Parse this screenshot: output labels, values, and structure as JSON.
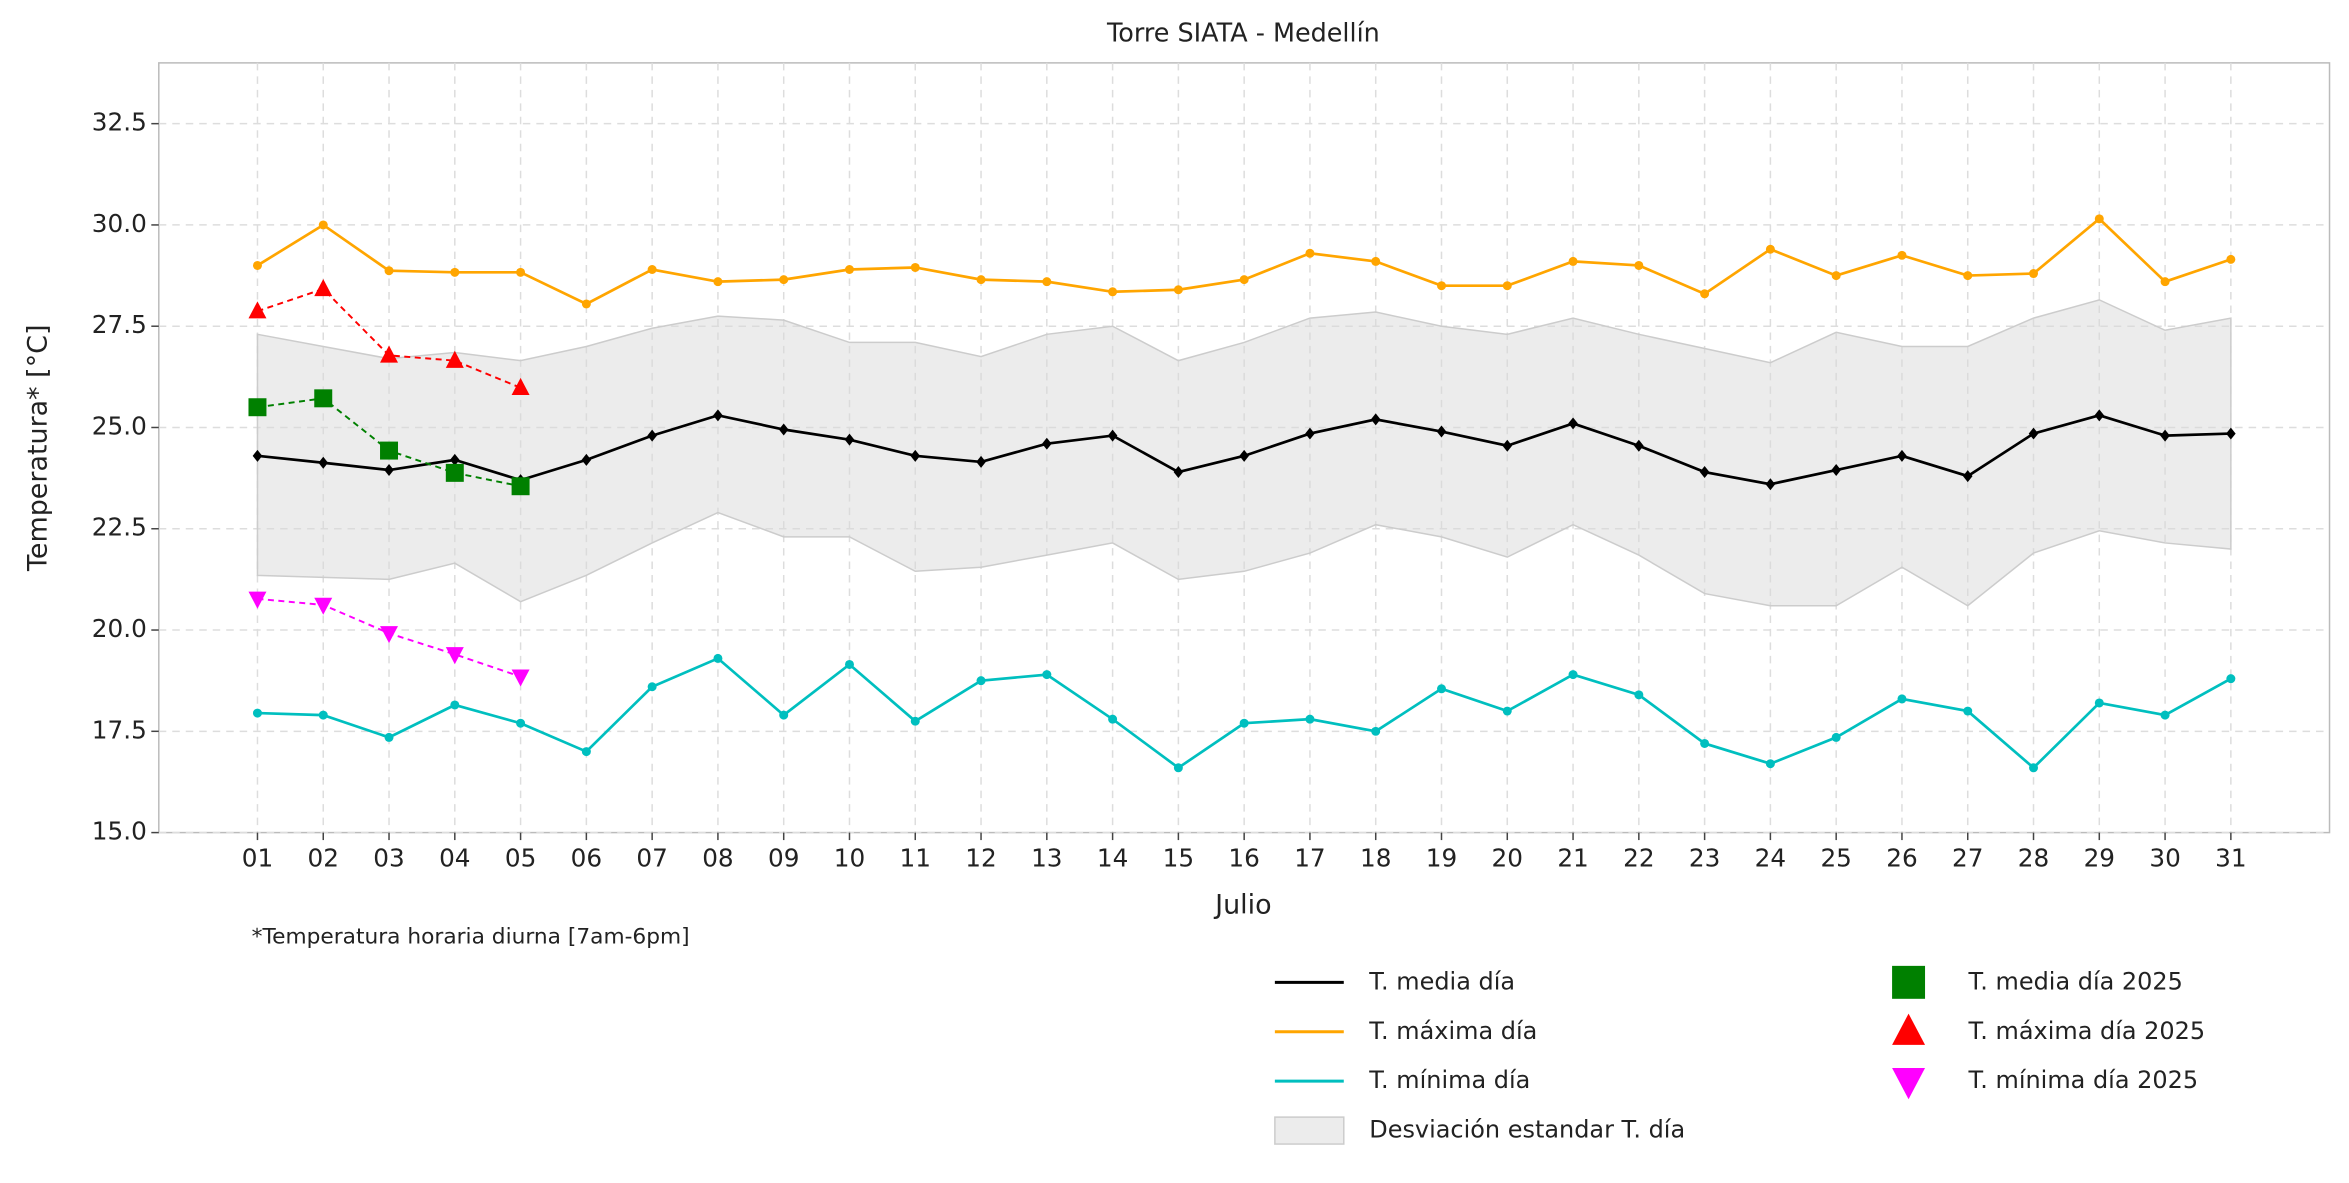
{
  "chart_data": {
    "type": "line",
    "title": "Torre SIATA - Medellín",
    "x_label": "Julio",
    "y_label": "Temperatura* [°C]",
    "annotation": "*Temperatura horaria diurna [7am-6pm]",
    "categories": [
      "01",
      "02",
      "03",
      "04",
      "05",
      "06",
      "07",
      "08",
      "09",
      "10",
      "11",
      "12",
      "13",
      "14",
      "15",
      "16",
      "17",
      "18",
      "19",
      "20",
      "21",
      "22",
      "23",
      "24",
      "25",
      "26",
      "27",
      "28",
      "29",
      "30",
      "31"
    ],
    "ylim": [
      15,
      34
    ],
    "yticks": [
      {
        "value": 15,
        "label": "15.0"
      },
      17.5,
      {
        "value": 20,
        "label": "20.0"
      },
      22.5,
      {
        "value": 25,
        "label": "25.0"
      },
      27.5,
      {
        "value": 30,
        "label": "30.0"
      },
      32.5
    ],
    "grid": true,
    "band": {
      "name": "Desviación estandar T. día",
      "color": "#d9d9d9",
      "upper": [
        27.3,
        27.0,
        26.7,
        26.85,
        26.65,
        27.0,
        27.45,
        27.75,
        27.65,
        27.1,
        27.1,
        26.75,
        27.3,
        27.5,
        26.65,
        27.1,
        27.7,
        27.85,
        27.5,
        27.3,
        27.7,
        27.3,
        26.95,
        26.6,
        27.35,
        27.0,
        27.0,
        27.7,
        28.15,
        27.4,
        27.7
      ],
      "lower": [
        21.35,
        21.3,
        21.25,
        21.65,
        20.7,
        21.35,
        22.15,
        22.9,
        22.3,
        22.3,
        21.45,
        21.55,
        21.85,
        22.15,
        21.25,
        21.45,
        21.9,
        22.6,
        22.3,
        21.8,
        22.6,
        21.85,
        20.9,
        20.6,
        20.6,
        21.55,
        20.6,
        21.9,
        22.45,
        22.15,
        22.0
      ]
    },
    "series": [
      {
        "name": "T. media día",
        "color": "#000000",
        "marker": "diamond",
        "dashed": false,
        "values": [
          24.3,
          24.13,
          23.95,
          24.2,
          23.7,
          24.2,
          24.8,
          25.3,
          24.95,
          24.7,
          24.3,
          24.15,
          24.6,
          24.8,
          23.9,
          24.3,
          24.85,
          25.2,
          24.9,
          24.55,
          25.1,
          24.55,
          23.9,
          23.6,
          23.95,
          24.3,
          23.8,
          24.85,
          25.3,
          24.8,
          24.85
        ]
      },
      {
        "name": "T. máxima día",
        "color": "#ffa500",
        "marker": "circle",
        "dashed": false,
        "values": [
          29.0,
          30.0,
          28.87,
          28.83,
          28.83,
          28.05,
          28.9,
          28.6,
          28.65,
          28.9,
          28.95,
          28.65,
          28.6,
          28.35,
          28.4,
          28.65,
          29.3,
          29.1,
          28.5,
          28.5,
          29.1,
          29.0,
          28.3,
          29.4,
          28.75,
          29.25,
          28.75,
          28.8,
          30.15,
          28.6,
          29.15
        ]
      },
      {
        "name": "T. mínima día",
        "color": "#00bfbf",
        "marker": "circle",
        "dashed": false,
        "values": [
          17.95,
          17.9,
          17.35,
          18.15,
          17.7,
          17.0,
          18.6,
          19.3,
          17.9,
          19.15,
          17.75,
          18.75,
          18.9,
          17.8,
          16.6,
          17.7,
          17.8,
          17.5,
          18.55,
          18.0,
          18.9,
          18.4,
          17.2,
          16.7,
          17.35,
          18.3,
          18.0,
          16.6,
          18.2,
          17.9,
          18.8
        ]
      },
      {
        "name": "T. media día 2025",
        "color": "#008000",
        "marker": "square",
        "dashed": true,
        "values": [
          25.5,
          25.72,
          24.43,
          23.88,
          23.55,
          null,
          null,
          null,
          null,
          null,
          null,
          null,
          null,
          null,
          null,
          null,
          null,
          null,
          null,
          null,
          null,
          null,
          null,
          null,
          null,
          null,
          null,
          null,
          null,
          null,
          null
        ]
      },
      {
        "name": "T. máxima día 2025",
        "color": "#ff0000",
        "marker": "triangle-up",
        "dashed": true,
        "values": [
          27.87,
          28.42,
          26.78,
          26.65,
          25.98,
          null,
          null,
          null,
          null,
          null,
          null,
          null,
          null,
          null,
          null,
          null,
          null,
          null,
          null,
          null,
          null,
          null,
          null,
          null,
          null,
          null,
          null,
          null,
          null,
          null,
          null
        ]
      },
      {
        "name": "T. mínima día 2025",
        "color": "#ff00ff",
        "marker": "triangle-down",
        "dashed": true,
        "values": [
          20.77,
          20.62,
          19.92,
          19.4,
          18.85,
          null,
          null,
          null,
          null,
          null,
          null,
          null,
          null,
          null,
          null,
          null,
          null,
          null,
          null,
          null,
          null,
          null,
          null,
          null,
          null,
          null,
          null,
          null,
          null,
          null,
          null
        ]
      }
    ]
  }
}
